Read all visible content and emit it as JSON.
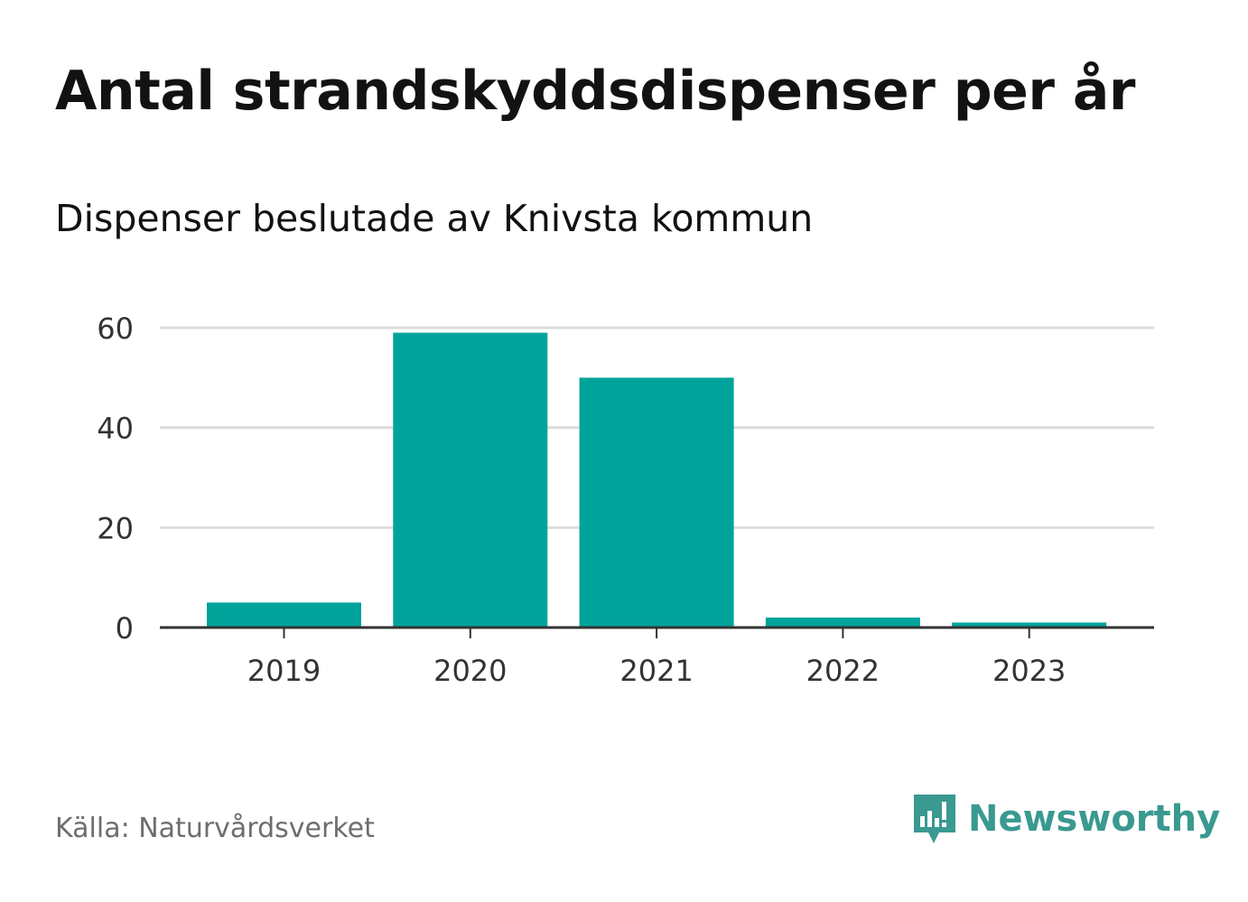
{
  "chart_data": {
    "type": "bar",
    "title": "Antal strandskyddsdispenser per år",
    "subtitle": "Dispenser beslutade av Knivsta kommun",
    "categories": [
      "2019",
      "2020",
      "2021",
      "2022",
      "2023"
    ],
    "values": [
      5,
      59,
      50,
      2,
      1
    ],
    "ylim": [
      0,
      60
    ],
    "yticks": [
      0,
      20,
      40,
      60
    ],
    "xlabel": "",
    "ylabel": "",
    "grid": true,
    "bar_color": "#00a39a"
  },
  "footer": {
    "source": "Källa: Naturvårdsverket",
    "brand": "Newsworthy",
    "brand_color": "#3a9990"
  }
}
